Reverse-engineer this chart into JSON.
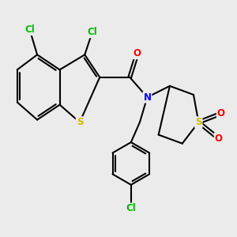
{
  "background_color": "#EBEBEB",
  "bond_color": "#000000",
  "bond_width": 1.5,
  "atom_colors": {
    "Cl": "#00BB00",
    "S": "#CCBB00",
    "N": "#0000FF",
    "O": "#FF0000",
    "C": "#000000"
  },
  "font_size_atoms": 8.5,
  "figsize": [
    3.0,
    3.0
  ],
  "dpi": 100
}
